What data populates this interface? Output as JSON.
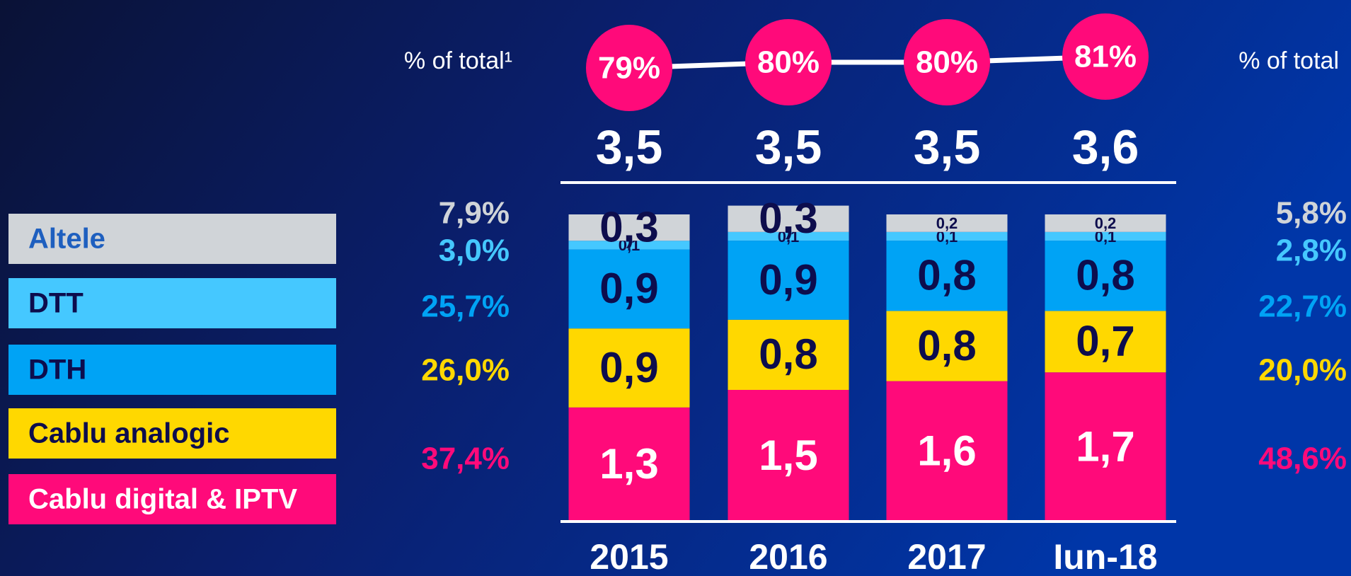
{
  "chart_data": {
    "type": "stacked-bar",
    "categories": [
      "2015",
      "2016",
      "2017",
      "Iun-18"
    ],
    "series": [
      {
        "name": "Cablu digital & IPTV",
        "color": "#ff0a7a",
        "label_color": "#ffffff",
        "values": [
          1.3,
          1.5,
          1.6,
          1.7
        ],
        "value_labels": [
          "1,3",
          "1,5",
          "1,6",
          "1,7"
        ],
        "shares": [
          37.4,
          48.6
        ],
        "share_labels": [
          "37,4%",
          "48,6%"
        ]
      },
      {
        "name": "Cablu analogic",
        "color": "#ffd800",
        "label_color": "#0d0d4d",
        "values": [
          0.9,
          0.8,
          0.8,
          0.7
        ],
        "value_labels": [
          "0,9",
          "0,8",
          "0,8",
          "0,7"
        ],
        "shares": [
          26.0,
          20.0
        ],
        "share_labels": [
          "26,0%",
          "20,0%"
        ]
      },
      {
        "name": "DTH",
        "color": "#00a3f5",
        "label_color": "#0d0d4d",
        "values": [
          0.9,
          0.9,
          0.8,
          0.8
        ],
        "value_labels": [
          "0,9",
          "0,9",
          "0,8",
          "0,8"
        ],
        "shares": [
          25.7,
          22.7
        ],
        "share_labels": [
          "25,7%",
          "22,7%"
        ]
      },
      {
        "name": "DTT",
        "color": "#45c8ff",
        "label_color": "#0d0d4d",
        "values": [
          0.1,
          0.1,
          0.1,
          0.1
        ],
        "value_labels": [
          "0,1",
          "0,1",
          "0,1",
          "0,1"
        ],
        "shares": [
          3.0,
          2.8
        ],
        "share_labels": [
          "3,0%",
          "2,8%"
        ]
      },
      {
        "name": "Altele",
        "color": "#d0d4d8",
        "label_color": "#0d0d4d",
        "values": [
          0.3,
          0.3,
          0.2,
          0.2
        ],
        "value_labels": [
          "0,3",
          "0,3",
          "0,2",
          "0,2"
        ],
        "shares": [
          7.9,
          5.8
        ],
        "share_labels": [
          "7,9%",
          "5,8%"
        ]
      }
    ],
    "totals": {
      "values": [
        3.5,
        3.5,
        3.5,
        3.6
      ],
      "value_labels": [
        "3,5",
        "3,5",
        "3,5",
        "3,6"
      ]
    },
    "digital_share": {
      "color": "#ff0a7a",
      "values": [
        79,
        80,
        80,
        81
      ],
      "value_labels": [
        "79%",
        "80%",
        "80%",
        "81%"
      ]
    },
    "share_headers": [
      "% of total¹",
      "% of total"
    ]
  }
}
